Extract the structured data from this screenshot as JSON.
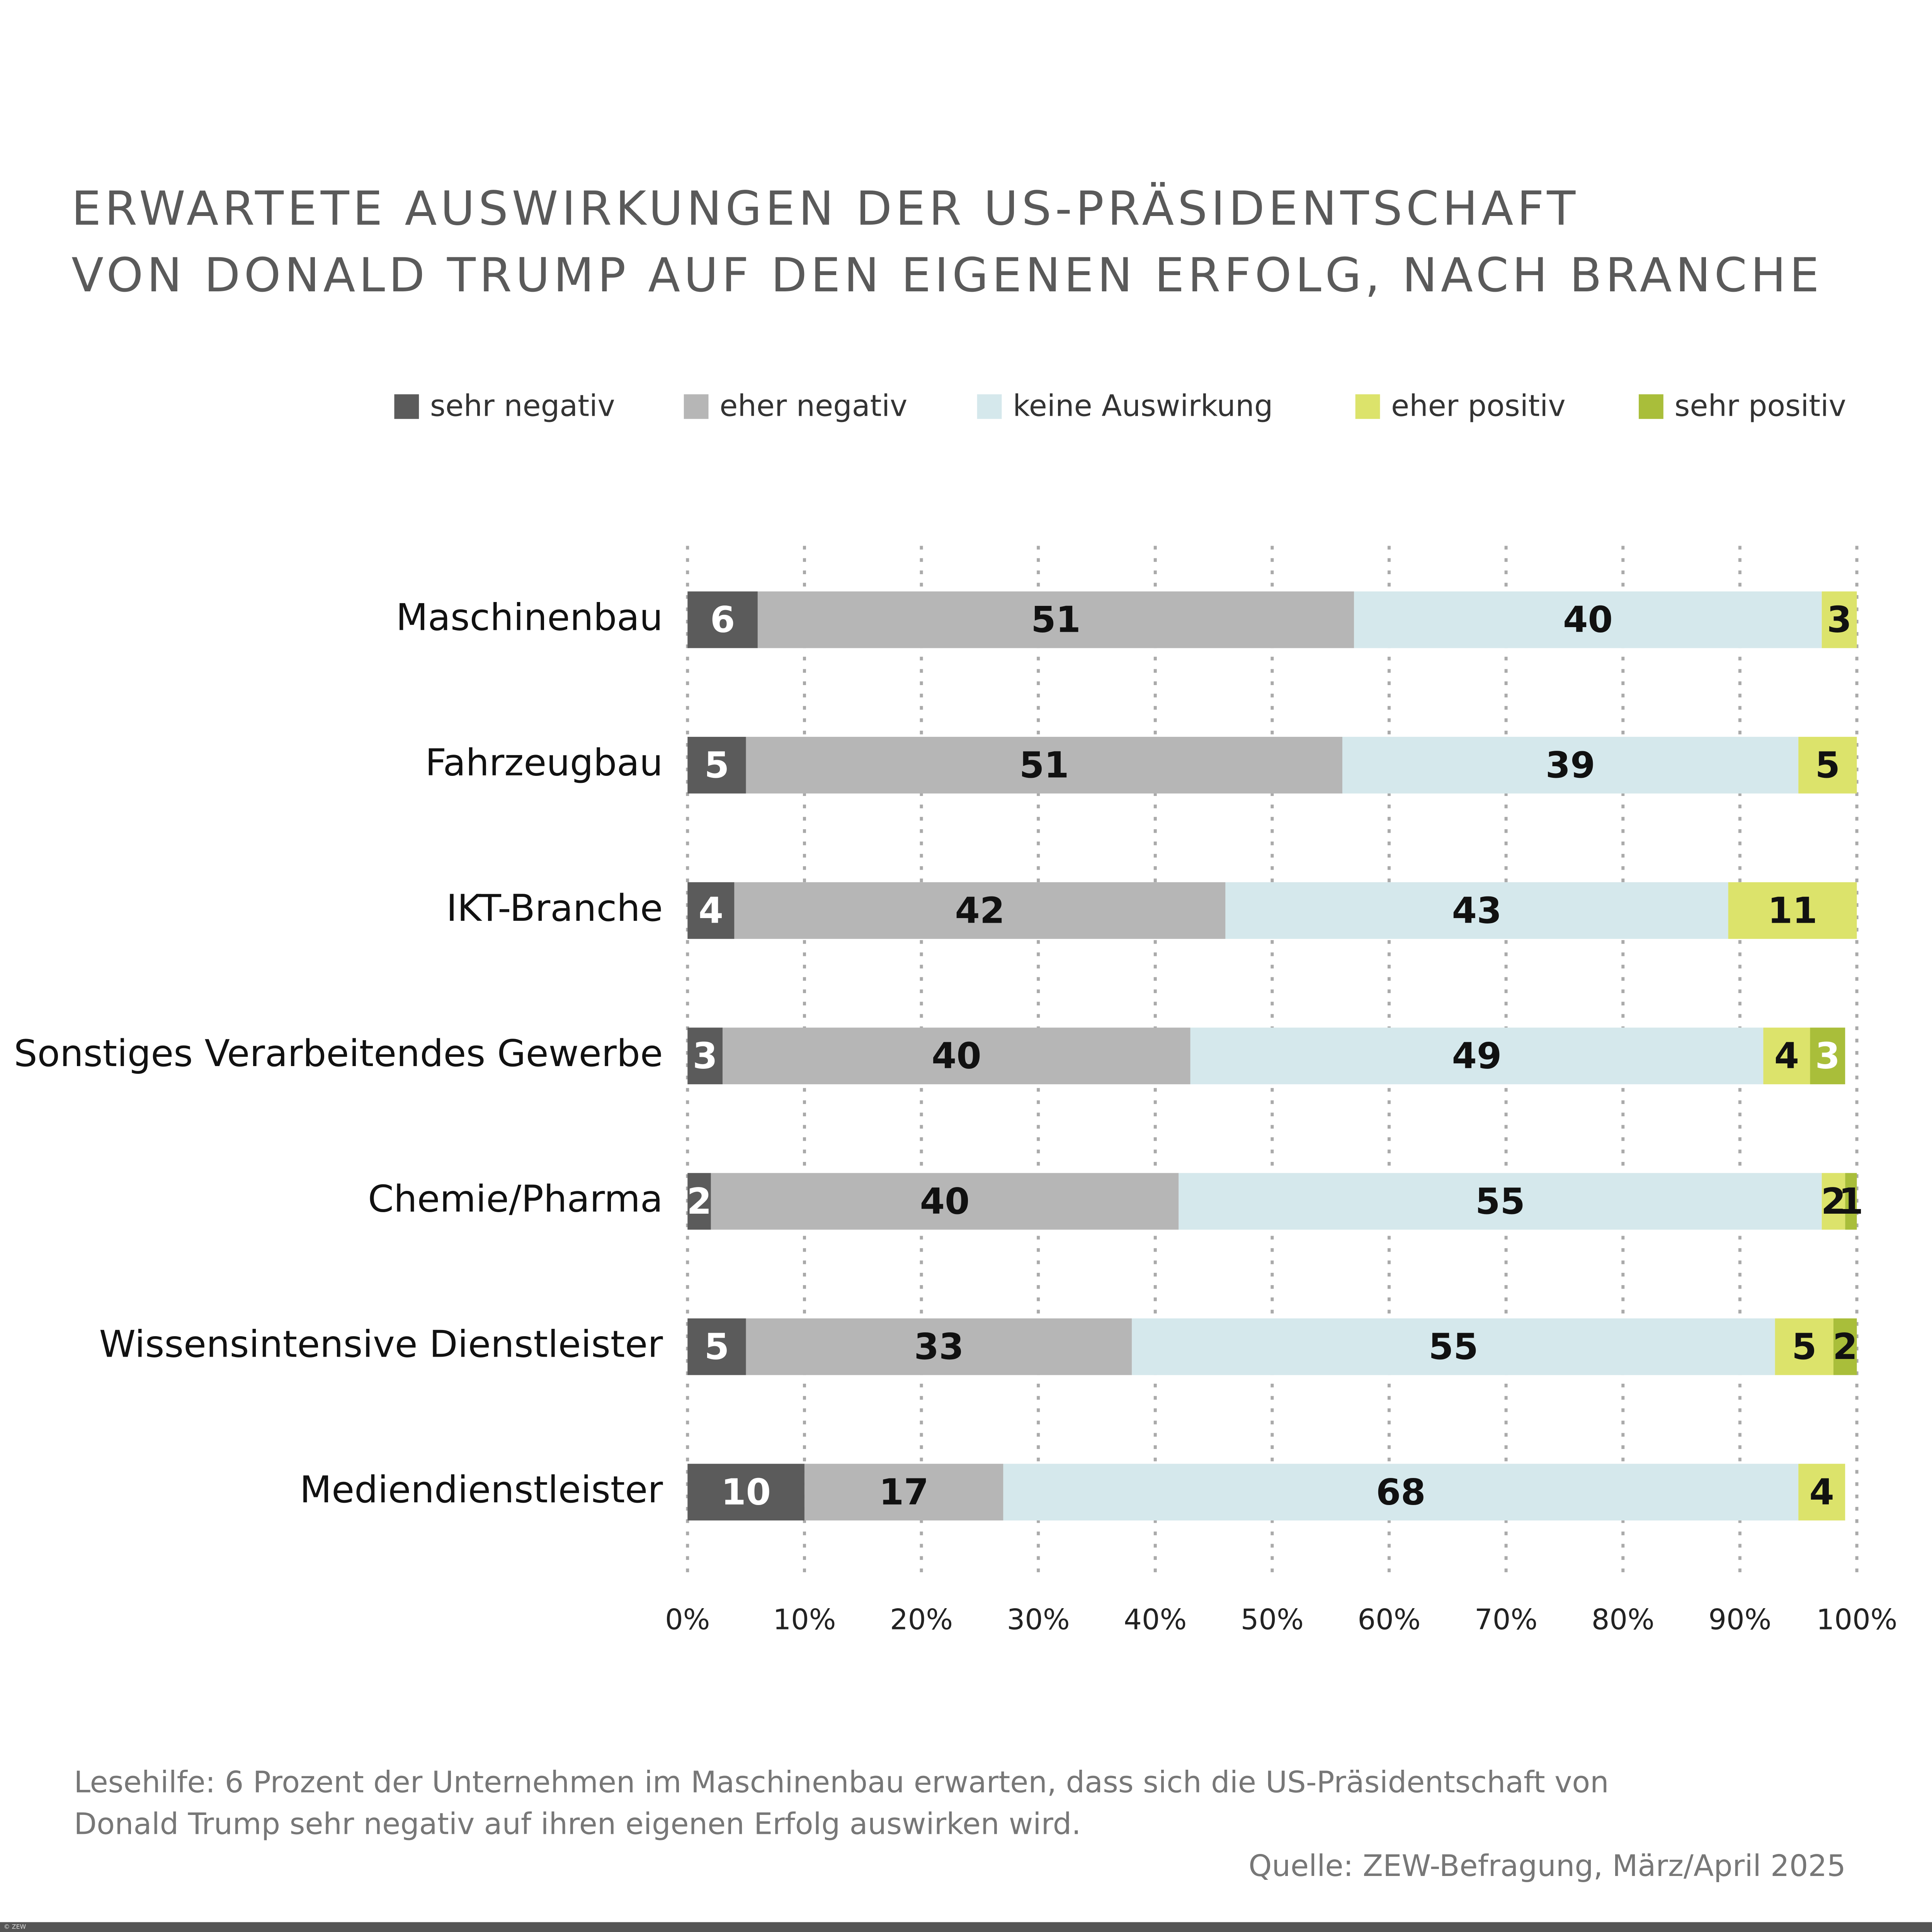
{
  "chart_data": {
    "type": "stacked-bar-horizontal",
    "title": [
      "ERWARTETE AUSWIRKUNGEN DER US-PRÄSIDENTSCHAFT",
      "VON DONALD TRUMP AUF DEN EIGENEN ERFOLG, NACH BRANCHE"
    ],
    "categories": [
      "Maschinenbau",
      "Fahrzeugbau",
      "IKT-Branche",
      "Sonstiges Verarbeitendes Gewerbe",
      "Chemie/Pharma",
      "Wissensintensive Dienstleister",
      "Mediendienstleister"
    ],
    "series": [
      {
        "name": "sehr negativ",
        "color": "#5b5b5b",
        "values": [
          6,
          5,
          4,
          3,
          2,
          5,
          10
        ]
      },
      {
        "name": "eher negativ",
        "color": "#b6b6b6",
        "values": [
          51,
          51,
          42,
          40,
          40,
          33,
          17
        ]
      },
      {
        "name": "keine Auswirkung",
        "color": "#d5e8ec",
        "values": [
          40,
          39,
          43,
          49,
          55,
          55,
          68
        ]
      },
      {
        "name": "eher positiv",
        "color": "#dce36b",
        "values": [
          3,
          5,
          11,
          4,
          2,
          5,
          4
        ]
      },
      {
        "name": "sehr positiv",
        "color": "#a9be3a",
        "values": [
          null,
          null,
          null,
          3,
          1,
          2,
          null
        ]
      }
    ],
    "xlim": [
      0,
      100
    ],
    "xticks": [
      {
        "value": 0,
        "label": "0%"
      },
      {
        "value": 10,
        "label": "10%"
      },
      {
        "value": 20,
        "label": "20%"
      },
      {
        "value": 30,
        "label": "30%"
      },
      {
        "value": 40,
        "label": "40%"
      },
      {
        "value": 50,
        "label": "50%"
      },
      {
        "value": 60,
        "label": "60%"
      },
      {
        "value": 70,
        "label": "70%"
      },
      {
        "value": 80,
        "label": "80%"
      },
      {
        "value": 90,
        "label": "90%"
      },
      {
        "value": 100,
        "label": "100%"
      }
    ],
    "grid": true,
    "note": [
      "Lesehilfe: 6 Prozent der Unternehmen im Maschinenbau erwarten, dass sich die US-Präsidentschaft von",
      "Donald Trump sehr negativ auf ihren eigenen Erfolg auswirken wird."
    ],
    "source": "Quelle: ZEW-Befragung, März/April 2025",
    "copyright": "© ZEW"
  }
}
